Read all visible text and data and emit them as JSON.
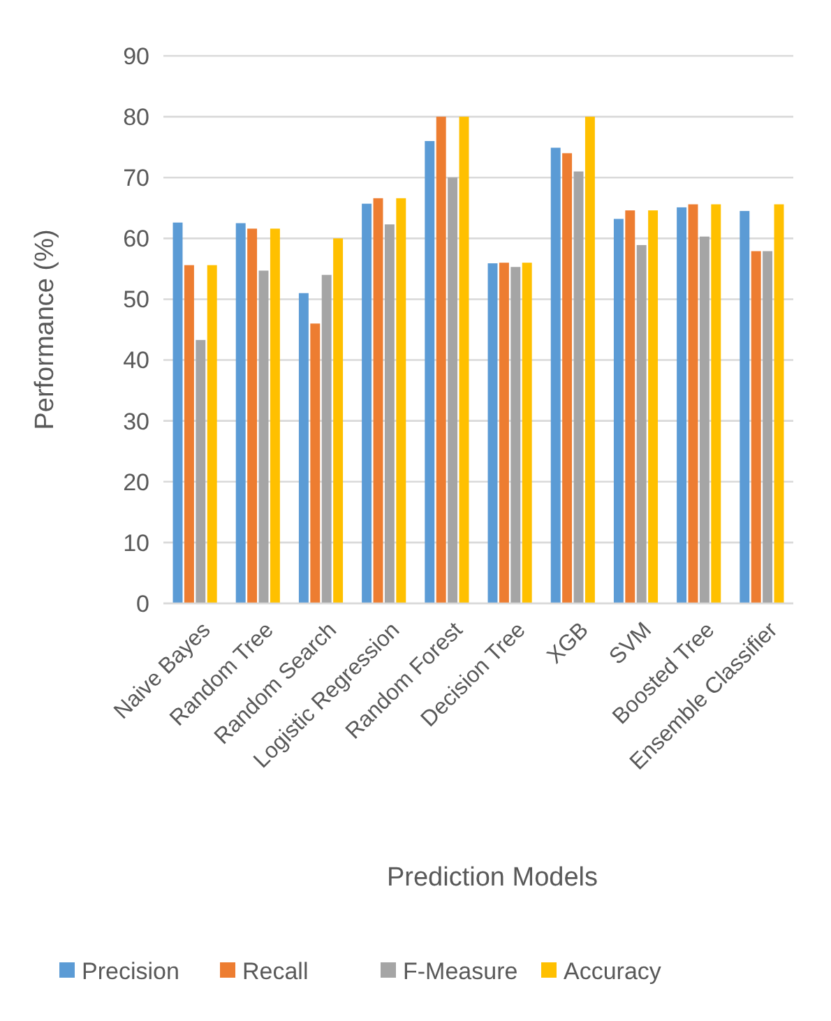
{
  "chart_data": {
    "type": "bar",
    "xlabel": "Prediction Models",
    "ylabel": "Performance (%)",
    "categories": [
      "Naive Bayes",
      "Random Tree",
      "Random Search",
      "Logistic Regression",
      "Random Forest",
      "Decision Tree",
      "XGB",
      "SVM",
      "Boosted Tree",
      "Ensemble Classifier"
    ],
    "series": [
      {
        "name": "Precision",
        "color": "#5b9bd5",
        "values": [
          62.6,
          62.5,
          51.0,
          65.7,
          76.0,
          55.9,
          74.9,
          63.2,
          65.1,
          64.5
        ]
      },
      {
        "name": "Recall",
        "color": "#ed7d31",
        "values": [
          55.6,
          61.6,
          46.0,
          66.6,
          80.0,
          56.0,
          74.0,
          64.6,
          65.6,
          57.9
        ]
      },
      {
        "name": "F-Measure",
        "color": "#a5a5a5",
        "values": [
          43.3,
          54.7,
          54.0,
          62.3,
          70.0,
          55.3,
          71.0,
          58.9,
          60.3,
          57.9
        ]
      },
      {
        "name": "Accuracy",
        "color": "#ffc000",
        "values": [
          55.6,
          61.6,
          60.0,
          66.6,
          80.0,
          56.0,
          80.0,
          64.6,
          65.6,
          65.6
        ]
      }
    ],
    "ylim": [
      0,
      90
    ],
    "yticks": [
      0,
      10,
      20,
      30,
      40,
      50,
      60,
      70,
      80,
      90
    ],
    "grid": "y",
    "legend": "bottom"
  }
}
